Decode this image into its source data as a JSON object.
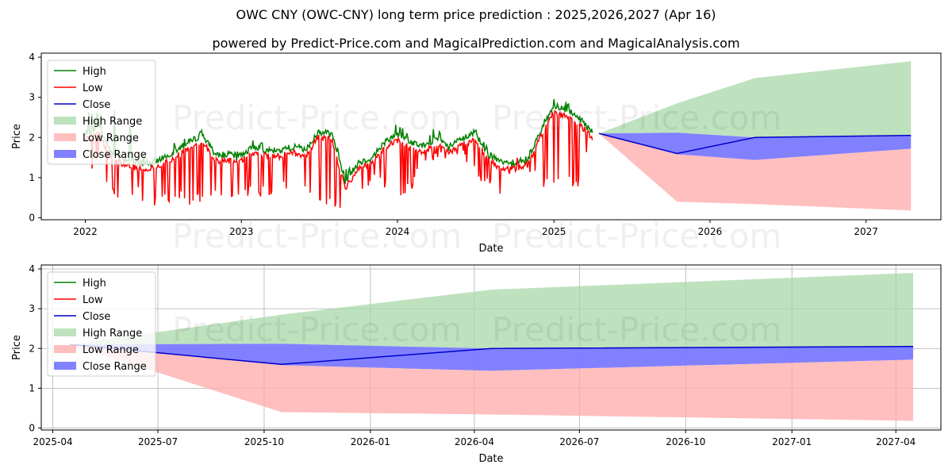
{
  "title": "OWC CNY (OWC-CNY) long term price prediction : 2025,2026,2027 (Apr 16)",
  "subtitle": "powered by Predict-Price.com and MagicalPrediction.com and MagicalAnalysis.com",
  "watermark": "Predict-Price.com",
  "colors": {
    "high": "#008000",
    "low": "#ff0000",
    "close": "#0000cc",
    "high_range": "#a8d8a8",
    "low_range": "#ffaaaa",
    "close_range": "#7a7aff"
  },
  "chart_data": [
    {
      "type": "line",
      "xlabel": "Date",
      "ylabel": "Price",
      "xlim": [
        "2021-09-20",
        "2027-06-25"
      ],
      "ylim": [
        -0.05,
        4.1
      ],
      "x_ticks": [
        "2022",
        "2023",
        "2024",
        "2025",
        "2026",
        "2027"
      ],
      "y_ticks": [
        "0",
        "1",
        "2",
        "3",
        "4"
      ],
      "grid": false,
      "legend_position": "top-left",
      "legend": [
        "High",
        "Low",
        "Close",
        "High Range",
        "Low Range",
        "Close Range"
      ],
      "history": {
        "x": [
          "2022-01-01",
          "2022-02-01",
          "2022-03-01",
          "2022-04-01",
          "2022-05-01",
          "2022-06-01",
          "2022-07-01",
          "2022-08-01",
          "2022-09-01",
          "2022-10-01",
          "2022-11-01",
          "2022-12-01",
          "2023-01-01",
          "2023-02-01",
          "2023-03-01",
          "2023-04-01",
          "2023-05-01",
          "2023-06-01",
          "2023-07-01",
          "2023-08-01",
          "2023-09-01",
          "2023-10-01",
          "2023-11-01",
          "2023-12-01",
          "2024-01-01",
          "2024-02-01",
          "2024-03-01",
          "2024-04-01",
          "2024-05-01",
          "2024-06-01",
          "2024-07-01",
          "2024-08-01",
          "2024-09-01",
          "2024-10-01",
          "2024-11-01",
          "2024-12-01",
          "2025-01-01",
          "2025-02-01",
          "2025-03-01",
          "2025-04-01"
        ],
        "high": [
          2.9,
          2.6,
          2.9,
          2.7,
          2.0,
          1.4,
          1.6,
          1.9,
          2.1,
          2.25,
          1.6,
          1.55,
          1.55,
          2.0,
          1.8,
          1.7,
          1.85,
          1.8,
          2.2,
          2.2,
          1.2,
          1.5,
          1.55,
          2.0,
          2.4,
          2.0,
          1.9,
          2.5,
          1.8,
          2.1,
          2.3,
          1.7,
          1.45,
          1.4,
          1.5,
          2.3,
          3.0,
          2.9,
          2.6,
          2.1
        ],
        "low": [
          1.0,
          1.3,
          0.5,
          0.4,
          0.5,
          0.3,
          0.3,
          0.4,
          0.3,
          0.3,
          0.6,
          0.5,
          0.5,
          0.5,
          0.5,
          0.6,
          0.7,
          0.5,
          0.3,
          0.3,
          0.2,
          0.4,
          0.9,
          0.7,
          0.5,
          0.6,
          1.4,
          1.4,
          1.5,
          1.5,
          1.0,
          0.7,
          0.4,
          1.2,
          1.2,
          0.7,
          0.8,
          0.8,
          0.7,
          2.08
        ],
        "close": [
          2.0,
          2.2,
          1.6,
          1.4,
          1.3,
          1.3,
          1.4,
          1.6,
          1.8,
          2.0,
          1.5,
          1.5,
          1.5,
          1.7,
          1.6,
          1.6,
          1.7,
          1.6,
          2.1,
          2.0,
          0.8,
          1.3,
          1.4,
          1.8,
          2.0,
          1.8,
          1.7,
          1.9,
          1.7,
          1.9,
          2.0,
          1.5,
          1.3,
          1.3,
          1.4,
          2.1,
          2.7,
          2.6,
          2.4,
          2.08
        ]
      },
      "forecast": {
        "x": [
          "2025-04-16",
          "2025-10-16",
          "2026-04-16",
          "2027-04-16"
        ],
        "high_range": [
          2.1,
          2.85,
          3.48,
          3.9
        ],
        "low_range": [
          2.1,
          0.4,
          0.34,
          0.18
        ],
        "close_range_upper": [
          2.1,
          2.12,
          2.0,
          2.05
        ],
        "close_range_lower": [
          2.1,
          1.58,
          1.44,
          1.72
        ],
        "close": [
          2.1,
          1.6,
          2.0,
          2.05
        ]
      }
    },
    {
      "type": "line",
      "xlabel": "Date",
      "ylabel": "Price",
      "xlim": [
        "2025-03-22",
        "2027-05-10"
      ],
      "ylim": [
        -0.05,
        4.1
      ],
      "x_ticks": [
        "2025-04",
        "2025-07",
        "2025-10",
        "2026-01",
        "2026-04",
        "2026-07",
        "2026-10",
        "2027-01",
        "2027-04"
      ],
      "y_ticks": [
        "0",
        "1",
        "2",
        "3",
        "4"
      ],
      "grid": true,
      "legend_position": "top-left",
      "legend": [
        "High",
        "Low",
        "Close",
        "High Range",
        "Low Range",
        "Close Range"
      ],
      "forecast": {
        "x": [
          "2025-04-16",
          "2025-10-16",
          "2026-04-16",
          "2027-04-16"
        ],
        "high_range": [
          2.1,
          2.85,
          3.48,
          3.9
        ],
        "low_range": [
          2.1,
          0.4,
          0.34,
          0.18
        ],
        "close_range_upper": [
          2.1,
          2.12,
          2.0,
          2.05
        ],
        "close_range_lower": [
          2.1,
          1.58,
          1.44,
          1.72
        ],
        "close": [
          2.1,
          1.6,
          2.0,
          2.05
        ]
      }
    }
  ]
}
